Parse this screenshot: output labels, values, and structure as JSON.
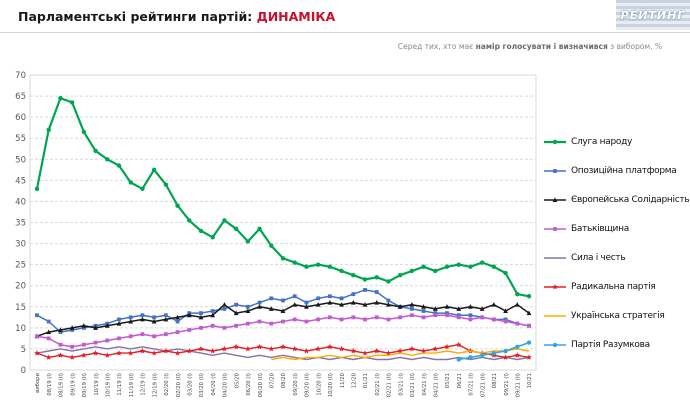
{
  "header": {
    "title_prefix": "Парламентські рейтинги партій: ",
    "title_accent": "ДИНАМІКА",
    "logo_text": "РЕЙТИНГ"
  },
  "subtitle": {
    "prefix": "Серед тих, хто має ",
    "bold": "намір голосувати і визначився",
    "suffix": " з вибором, %"
  },
  "colors": {
    "accent": "#c8102e",
    "grid": "#d9d9d9",
    "axis_text": "#595959",
    "x_label_text": "#444444"
  },
  "chart_data": {
    "type": "line",
    "title": "Парламентські рейтинги партій: ДИНАМІКА",
    "subtitle": "Серед тих, хто має намір голосувати і визначився з вибором, %",
    "xlabel": "",
    "ylabel": "",
    "ylim": [
      0,
      70
    ],
    "ytick_step": 5,
    "grid": true,
    "legend_position": "right",
    "categories": [
      "вибори",
      "08/19 (I)",
      "08/19 (II)",
      "09/19 (I)",
      "09/19 (II)",
      "10/19 (I)",
      "10/19 (II)",
      "11/19 (I)",
      "11/19 (II)",
      "12/19 (I)",
      "12/19 (II)",
      "02/20 (I)",
      "02/20 (II)",
      "03/20 (I)",
      "03/20 (II)",
      "04/20 (I)",
      "04/20 (II)",
      "05/20",
      "06/20 (I)",
      "06/20 (II)",
      "07/20",
      "08/20",
      "09/20 (I)",
      "09/20 (II)",
      "10/20 (I)",
      "10/20 (II)",
      "11/20",
      "12/20",
      "01/21",
      "02/21 (I)",
      "02/21 (II)",
      "03/21 (I)",
      "03/21 (II)",
      "04/21 (I)",
      "04/21 (II)",
      "05/21",
      "06/21",
      "07/21 (I)",
      "07/21 (II)",
      "08/21",
      "09/21 (I)",
      "09/21 (II)",
      "10/21"
    ],
    "series": [
      {
        "name": "Слуга народу",
        "color": "#00a551",
        "marker": "circle",
        "line_width": 2.2,
        "values": [
          43,
          57,
          64.5,
          63.5,
          56.5,
          52,
          50,
          48.5,
          44.5,
          43,
          47.5,
          44,
          39,
          35.5,
          33,
          31.5,
          35.5,
          33.5,
          30.5,
          33.5,
          29.5,
          26.5,
          25.5,
          24.5,
          25,
          24.5,
          23.5,
          22.5,
          21.5,
          22,
          21,
          22.5,
          23.5,
          24.5,
          23.5,
          24.5,
          25,
          24.5,
          25.5,
          24.5,
          23,
          18,
          17.5
        ]
      },
      {
        "name": "Опозиційна платформа",
        "color": "#4472c4",
        "marker": "square",
        "line_width": 1.5,
        "values": [
          13,
          11.5,
          9,
          9.5,
          10,
          10.5,
          11,
          12,
          12.5,
          13,
          12.5,
          13,
          11.5,
          13.5,
          13.5,
          14,
          14.5,
          15.5,
          15,
          16,
          17,
          16.5,
          17.5,
          16,
          17,
          17.5,
          17,
          18,
          19,
          18.5,
          16.5,
          15,
          14.5,
          14,
          13.5,
          13.5,
          13,
          13,
          12.5,
          12,
          12,
          11,
          10.5
        ]
      },
      {
        "name": "Європейська Солідарність",
        "color": "#1a1a1a",
        "marker": "triangle",
        "line_width": 1.5,
        "values": [
          8,
          9,
          9.5,
          10,
          10.5,
          10,
          10.5,
          11,
          11.5,
          12,
          11.5,
          12,
          12.5,
          13,
          12.5,
          13,
          15.5,
          13.5,
          14,
          15,
          14.5,
          14,
          15.5,
          15,
          15.5,
          16,
          15.5,
          16,
          15.5,
          16,
          15.5,
          15,
          15.5,
          15,
          14.5,
          15,
          14.5,
          15,
          14.5,
          15.5,
          14,
          15.5,
          13.5
        ]
      },
      {
        "name": "Батьківщина",
        "color": "#c45ad0",
        "marker": "square",
        "line_width": 1.5,
        "values": [
          8,
          7.5,
          6,
          5.5,
          6,
          6.5,
          7,
          7.5,
          8,
          8.5,
          8,
          8.5,
          9,
          9.5,
          10,
          10.5,
          10,
          10.5,
          11,
          11.5,
          11,
          11.5,
          12,
          11.5,
          12,
          12.5,
          12,
          12.5,
          12,
          12.5,
          12,
          12.5,
          13,
          12.5,
          13,
          13,
          12.5,
          12,
          12.5,
          12,
          11.5,
          11,
          10.5
        ]
      },
      {
        "name": "Сила і честь",
        "color": "#8673a9",
        "marker": "none",
        "line_width": 1.4,
        "values": [
          4,
          4.5,
          5,
          4.5,
          5,
          5.5,
          5,
          5.5,
          5,
          5.5,
          5,
          4.5,
          5,
          4.5,
          4,
          3.5,
          4,
          3.5,
          3,
          3.5,
          3,
          3.5,
          3,
          2.5,
          3,
          2.5,
          3,
          2.5,
          3,
          2.5,
          2.5,
          3,
          2.5,
          3,
          2.5,
          2.5,
          3,
          2.5,
          3,
          2.5,
          3,
          2.5,
          3
        ]
      },
      {
        "name": "Радикальна партія",
        "color": "#e02127",
        "marker": "star",
        "line_width": 1.4,
        "values": [
          4,
          3,
          3.5,
          3,
          3.5,
          4,
          3.5,
          4,
          4,
          4.5,
          4,
          4.5,
          4,
          4.5,
          5,
          4.5,
          5,
          5.5,
          5,
          5.5,
          5,
          5.5,
          5,
          4.5,
          5,
          5.5,
          5,
          4.5,
          4,
          4.5,
          4,
          4.5,
          5,
          4.5,
          5,
          5.5,
          6,
          4.5,
          4,
          3.5,
          3,
          3.5,
          3
        ]
      },
      {
        "name": "Українська стратегія",
        "color": "#ffab00",
        "marker": "none",
        "line_width": 1.4,
        "values": [
          null,
          null,
          null,
          null,
          null,
          null,
          null,
          null,
          null,
          null,
          null,
          null,
          null,
          null,
          null,
          null,
          null,
          null,
          null,
          null,
          2.5,
          3,
          2.5,
          3,
          3,
          3.5,
          3,
          3.5,
          3,
          3.5,
          3.5,
          4,
          3.5,
          4,
          4,
          4.5,
          4,
          4.5,
          4,
          4.5,
          4.5,
          5,
          4.5
        ]
      },
      {
        "name": "Партія Разумкова",
        "color": "#30a7dd",
        "marker": "circle",
        "line_width": 1.6,
        "values": [
          null,
          null,
          null,
          null,
          null,
          null,
          null,
          null,
          null,
          null,
          null,
          null,
          null,
          null,
          null,
          null,
          null,
          null,
          null,
          null,
          null,
          null,
          null,
          null,
          null,
          null,
          null,
          null,
          null,
          null,
          null,
          null,
          null,
          null,
          null,
          null,
          2.5,
          3,
          3.5,
          4,
          4.5,
          5.5,
          6.5
        ]
      }
    ]
  }
}
